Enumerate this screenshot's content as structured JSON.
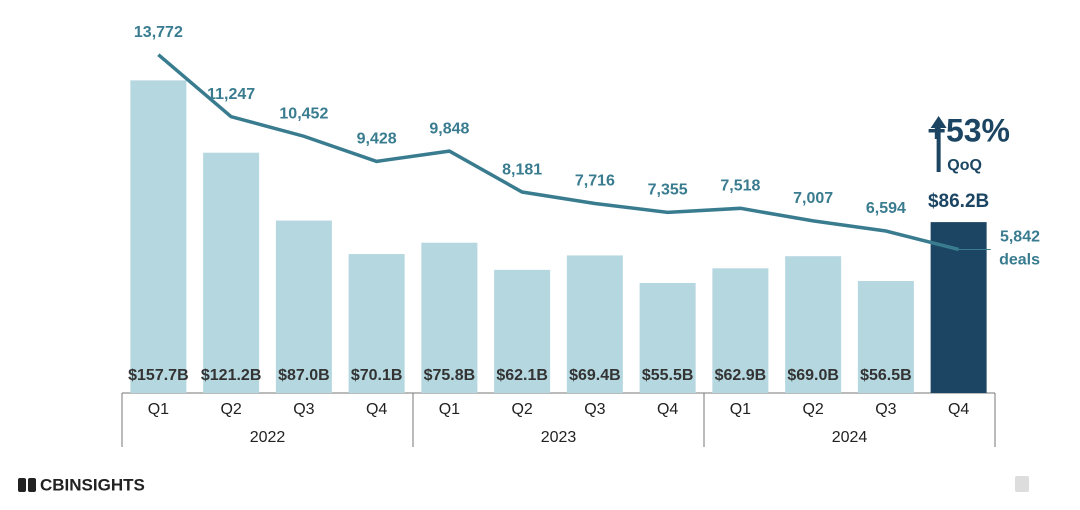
{
  "chart_data": {
    "type": "bar",
    "categories": [
      "Q1",
      "Q2",
      "Q3",
      "Q4",
      "Q1",
      "Q2",
      "Q3",
      "Q4",
      "Q1",
      "Q2",
      "Q3",
      "Q4"
    ],
    "groups": [
      "2022",
      "2023",
      "2024"
    ],
    "series": [
      {
        "type": "bar",
        "colors": [
          "#b5d8e0",
          "#b5d8e0",
          "#b5d8e0",
          "#b5d8e0",
          "#b5d8e0",
          "#b5d8e0",
          "#b5d8e0",
          "#b5d8e0",
          "#b5d8e0",
          "#b5d8e0",
          "#b5d8e0",
          "#1b4562"
        ],
        "values": [
          157.7,
          121.2,
          87.0,
          70.1,
          75.8,
          62.1,
          69.4,
          55.5,
          62.9,
          69.0,
          56.5,
          86.2
        ],
        "value_labels": [
          "$157.7B",
          "$121.2B",
          "$87.0B",
          "$70.1B",
          "$75.8B",
          "$62.1B",
          "$69.4B",
          "$55.5B",
          "$62.9B",
          "$69.0B",
          "$56.5B",
          "$86.2B"
        ]
      },
      {
        "type": "line",
        "name": "deals",
        "axis": "y2",
        "color": "#3a7c8f",
        "values": [
          13772,
          11247,
          10452,
          9428,
          9848,
          8181,
          7716,
          7355,
          7518,
          7007,
          6594,
          5842
        ],
        "value_labels": [
          "13,772",
          "11,247",
          "10,452",
          "9,428",
          "9,848",
          "8,181",
          "7,716",
          "7,355",
          "7,518",
          "7,007",
          "6,594",
          "5,842"
        ]
      }
    ],
    "ylim": [
      0,
      171
    ],
    "y2lim": [
      0,
      13800
    ],
    "annotation": {
      "text": "+53%",
      "subtext": "QoQ",
      "color": "#1b4562"
    },
    "brand": "CBINSIGHTS"
  }
}
